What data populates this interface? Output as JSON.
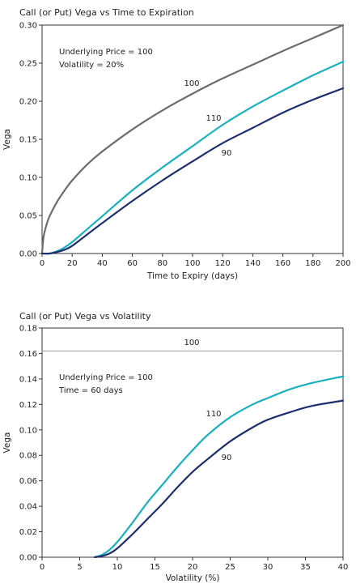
{
  "chart_data": [
    {
      "type": "line",
      "title": "Call (or Put) Vega vs Time to Expiration",
      "xlabel": "Time to Expiry (days)",
      "ylabel": "Vega",
      "xlim": [
        0,
        200
      ],
      "ylim": [
        0,
        0.3
      ],
      "xticks": [
        0,
        20,
        40,
        60,
        80,
        100,
        120,
        140,
        160,
        180,
        200
      ],
      "yticks": [
        0.0,
        0.05,
        0.1,
        0.15,
        0.2,
        0.25,
        0.3
      ],
      "xtick_labels": [
        "0",
        "20",
        "40",
        "60",
        "80",
        "100",
        "120",
        "140",
        "160",
        "180",
        "200"
      ],
      "ytick_labels": [
        "0.00",
        "0.05",
        "0.10",
        "0.15",
        "0.20",
        "0.25",
        "0.30"
      ],
      "grid": false,
      "annotations": [
        "Underlying Price = 100",
        "Volatility = 20%"
      ],
      "series": [
        {
          "name": "100",
          "color": "#6b6b70",
          "x": [
            0,
            1,
            3,
            5,
            10,
            15,
            20,
            30,
            40,
            60,
            80,
            100,
            120,
            140,
            160,
            180,
            200
          ],
          "y": [
            0.0,
            0.022,
            0.038,
            0.049,
            0.068,
            0.083,
            0.096,
            0.117,
            0.134,
            0.163,
            0.188,
            0.21,
            0.23,
            0.248,
            0.266,
            0.283,
            0.3
          ]
        },
        {
          "name": "110",
          "color": "#1ab0c0",
          "x": [
            0,
            5,
            10,
            15,
            20,
            30,
            40,
            60,
            80,
            100,
            120,
            140,
            160,
            180,
            200
          ],
          "y": [
            0.0,
            0.0,
            0.003,
            0.008,
            0.015,
            0.032,
            0.049,
            0.083,
            0.113,
            0.141,
            0.169,
            0.193,
            0.214,
            0.234,
            0.252
          ]
        },
        {
          "name": "90",
          "color": "#1f2f6e",
          "x": [
            0,
            5,
            10,
            15,
            20,
            30,
            40,
            60,
            80,
            100,
            120,
            140,
            160,
            180,
            200
          ],
          "y": [
            0.0,
            0.0,
            0.002,
            0.005,
            0.01,
            0.025,
            0.04,
            0.069,
            0.096,
            0.121,
            0.145,
            0.165,
            0.185,
            0.202,
            0.217
          ]
        }
      ]
    },
    {
      "type": "line",
      "title": "Call (or Put) Vega vs Volatility",
      "xlabel": "Volatility (%)",
      "ylabel": "Vega",
      "xlim": [
        0,
        40
      ],
      "ylim": [
        0,
        0.18
      ],
      "xticks": [
        0,
        5,
        10,
        15,
        20,
        25,
        30,
        35,
        40
      ],
      "yticks": [
        0.0,
        0.02,
        0.04,
        0.06,
        0.08,
        0.1,
        0.12,
        0.14,
        0.16,
        0.18
      ],
      "xtick_labels": [
        "0",
        "5",
        "10",
        "15",
        "20",
        "25",
        "30",
        "35",
        "40"
      ],
      "ytick_labels": [
        "0.00",
        "0.02",
        "0.04",
        "0.06",
        "0.08",
        "0.10",
        "0.12",
        "0.14",
        "0.16",
        "0.18"
      ],
      "grid": false,
      "annotations": [
        "Underlying Price = 100",
        "Time = 60 days"
      ],
      "series": [
        {
          "name": "100",
          "color": "#9a9a9a",
          "x": [
            0,
            40
          ],
          "y": [
            0.162,
            0.162
          ]
        },
        {
          "name": "110",
          "color": "#1ab0c0",
          "x": [
            7,
            8,
            9,
            10,
            12,
            14,
            16,
            18,
            20,
            22,
            25,
            28,
            30,
            33,
            36,
            40
          ],
          "y": [
            0.0,
            0.002,
            0.006,
            0.012,
            0.027,
            0.043,
            0.057,
            0.071,
            0.084,
            0.096,
            0.11,
            0.12,
            0.125,
            0.132,
            0.137,
            0.142
          ]
        },
        {
          "name": "90",
          "color": "#1f2f6e",
          "x": [
            7,
            8,
            9,
            10,
            12,
            14,
            16,
            18,
            20,
            22,
            25,
            28,
            30,
            33,
            36,
            40
          ],
          "y": [
            0.0,
            0.001,
            0.003,
            0.007,
            0.018,
            0.03,
            0.042,
            0.055,
            0.067,
            0.077,
            0.091,
            0.102,
            0.108,
            0.114,
            0.119,
            0.123
          ]
        }
      ]
    }
  ]
}
